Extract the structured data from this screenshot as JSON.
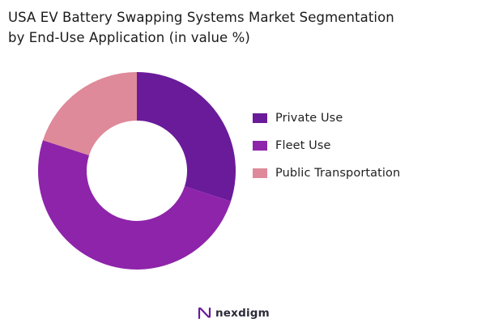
{
  "title": {
    "line1": "USA EV Battery Swapping Systems Market Segmentation",
    "line2": "by End-Use Application (in value %)"
  },
  "chart_data": {
    "type": "pie",
    "subtype": "donut",
    "title": "USA EV Battery Swapping Systems Market Segmentation by End-Use Application (in value %)",
    "categories": [
      "Private Use",
      "Fleet Use",
      "Public Transportation"
    ],
    "values": [
      30,
      50,
      20
    ],
    "colors": [
      "#6a1b9a",
      "#8e24aa",
      "#de8a9a"
    ],
    "legend_position": "right",
    "start_angle": "top",
    "direction": "clockwise"
  },
  "legend": [
    {
      "label": "Private Use",
      "color": "#6a1b9a"
    },
    {
      "label": "Fleet Use",
      "color": "#8e24aa"
    },
    {
      "label": "Public Transportation",
      "color": "#de8a9a"
    }
  ],
  "brand": {
    "name": "nexdigm",
    "icon": "nexdigm-logo-icon",
    "color": "#6a1b9a"
  }
}
